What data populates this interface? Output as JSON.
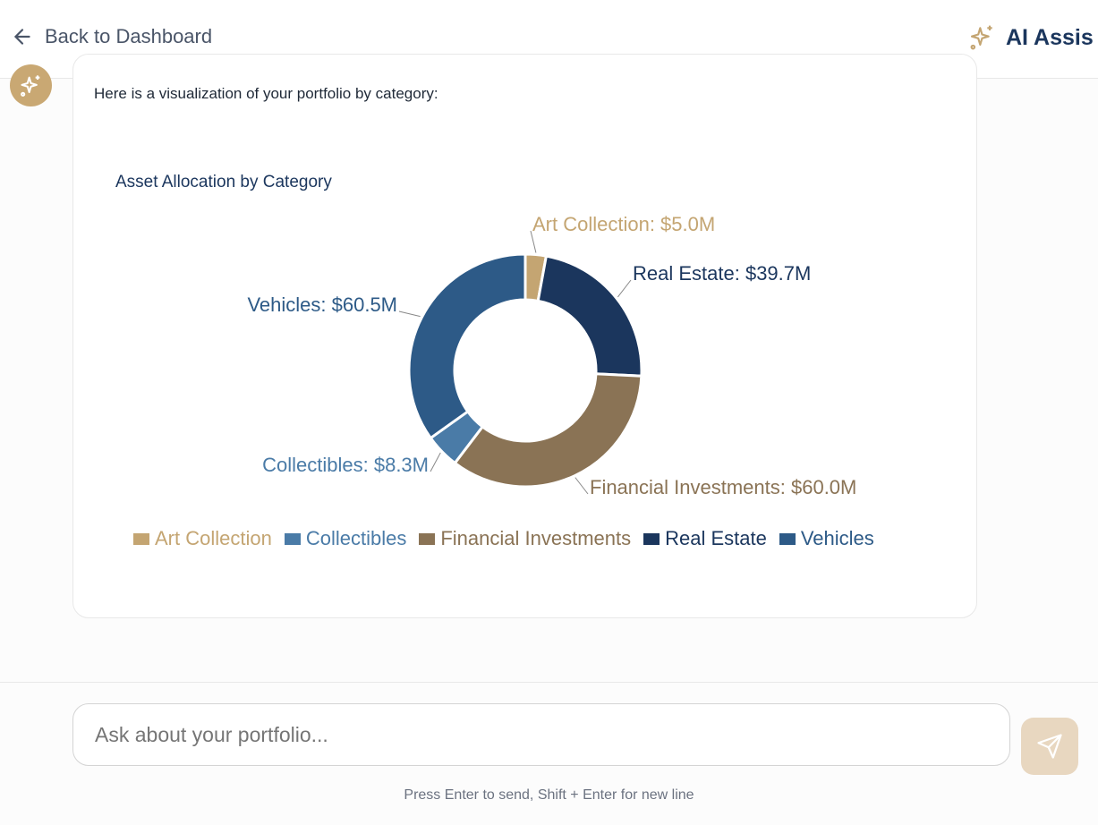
{
  "header": {
    "back_label": "Back to Dashboard",
    "title": "AI Assis"
  },
  "message": {
    "text": "Here is a visualization of your portfolio by category:"
  },
  "chart_data": {
    "type": "pie",
    "variant": "donut",
    "title": "Asset Allocation by Category",
    "categories": [
      "Art Collection",
      "Real Estate",
      "Financial Investments",
      "Collectibles",
      "Vehicles"
    ],
    "values": [
      5.0,
      39.7,
      60.0,
      8.3,
      60.5
    ],
    "unit": "$M",
    "labels": [
      "Art Collection: $5.0M",
      "Real Estate: $39.7M",
      "Financial Investments: $60.0M",
      "Collectibles: $8.3M",
      "Vehicles: $60.5M"
    ],
    "colors": [
      "#c4a572",
      "#1b365d",
      "#8a7355",
      "#4a7ba7",
      "#2d5a87"
    ],
    "legend_order": [
      0,
      3,
      2,
      1,
      4
    ],
    "legend_placement": "bottom"
  },
  "input": {
    "placeholder": "Ask about your portfolio..."
  },
  "hint": "Press Enter to send, Shift + Enter for new line"
}
